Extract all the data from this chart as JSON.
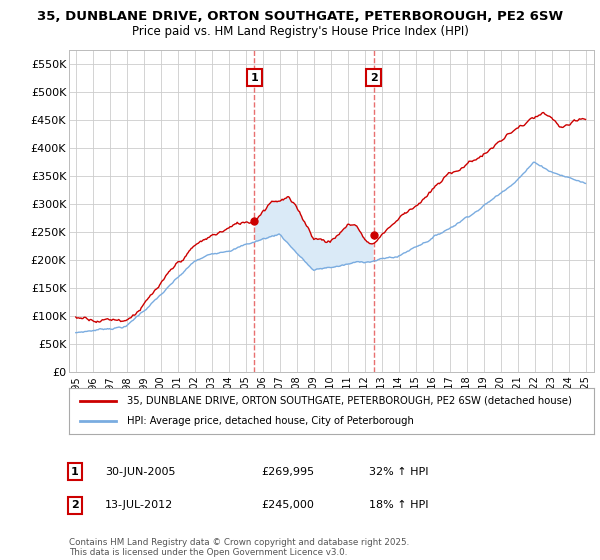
{
  "title_line1": "35, DUNBLANE DRIVE, ORTON SOUTHGATE, PETERBOROUGH, PE2 6SW",
  "title_line2": "Price paid vs. HM Land Registry's House Price Index (HPI)",
  "legend_line1": "35, DUNBLANE DRIVE, ORTON SOUTHGATE, PETERBOROUGH, PE2 6SW (detached house)",
  "legend_line2": "HPI: Average price, detached house, City of Peterborough",
  "annotation1_label": "1",
  "annotation1_date": "30-JUN-2005",
  "annotation1_price": "£269,995",
  "annotation1_hpi": "32% ↑ HPI",
  "annotation2_label": "2",
  "annotation2_date": "13-JUL-2012",
  "annotation2_price": "£245,000",
  "annotation2_hpi": "18% ↑ HPI",
  "footer": "Contains HM Land Registry data © Crown copyright and database right 2025.\nThis data is licensed under the Open Government Licence v3.0.",
  "red_color": "#cc0000",
  "blue_color": "#7aace0",
  "shading_color": "#daeaf7",
  "vline_color": "#e87070",
  "background_color": "#ffffff",
  "ylim": [
    0,
    575000
  ],
  "yticks": [
    0,
    50000,
    100000,
    150000,
    200000,
    250000,
    300000,
    350000,
    400000,
    450000,
    500000,
    550000
  ],
  "x_start_year": 1995,
  "x_end_year": 2025,
  "purchase1_year": 2005.5,
  "purchase2_year": 2012.54,
  "purchase1_price": 269995,
  "purchase2_price": 245000
}
